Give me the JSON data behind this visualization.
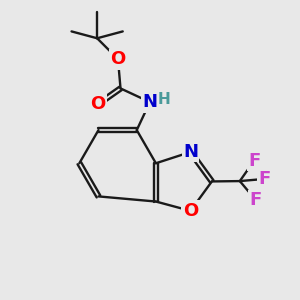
{
  "background_color": "#e8e8e8",
  "bond_color": "#1a1a1a",
  "atom_colors": {
    "O": "#ff0000",
    "N": "#0000cc",
    "F": "#cc44cc",
    "H": "#4a9a9a",
    "C": "#1a1a1a"
  },
  "font_size_atom": 13,
  "font_size_h": 11,
  "figsize": [
    3.0,
    3.0
  ],
  "dpi": 100
}
